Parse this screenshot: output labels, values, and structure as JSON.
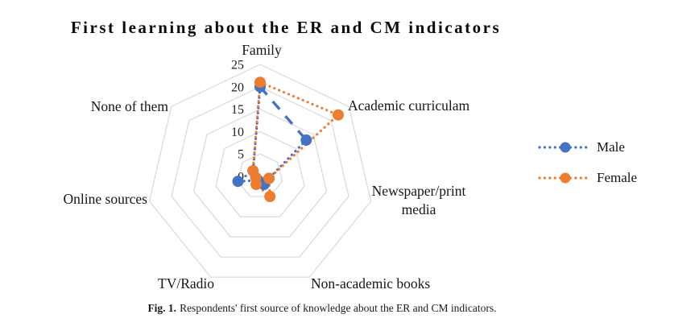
{
  "title": "First learning about the ER and CM indicators",
  "figure_caption": {
    "label": "Fig. 1.",
    "text": "Respondents' first source of knowledge about the ER and CM indicators."
  },
  "chart_data": {
    "type": "radar",
    "title": "First learning about the ER and CM indicators",
    "categories": [
      "Family",
      "Academic curriculam",
      "Newspaper/print media",
      "Non-academic books",
      "TV/Radio",
      "Online sources",
      "None of them"
    ],
    "series": [
      {
        "name": "Male",
        "color": "#4472C4",
        "values": [
          20,
          13,
          2,
          2,
          1,
          5,
          2
        ]
      },
      {
        "name": "Female",
        "color": "#ED7D31",
        "values": [
          21,
          22,
          2,
          5,
          2,
          1,
          2
        ]
      }
    ],
    "axis": {
      "min": 0,
      "max": 25,
      "ticks": [
        0,
        5,
        10,
        15,
        20,
        25
      ]
    },
    "gridline_color": "#D9D9D9",
    "grid": "rings-only",
    "legend_position": "right",
    "line_style": "dotted",
    "marker": "circle"
  }
}
